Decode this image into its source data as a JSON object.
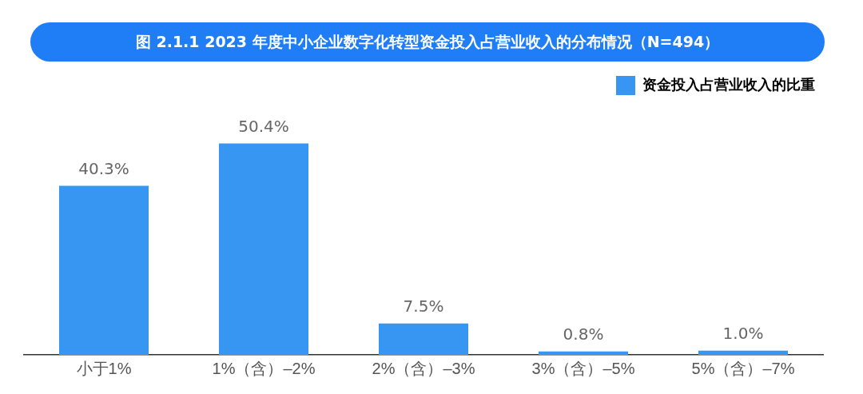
{
  "chart_data": {
    "type": "bar",
    "title": "图 2.1.1 2023 年度中小企业数字化转型资金投入占营业收入的分布情况（N=494）",
    "categories": [
      "小于1%",
      "1%（含）–2%",
      "2%（含）–3%",
      "3%（含）–5%",
      "5%（含）–7%"
    ],
    "series": [
      {
        "name": "资金投入占营业收入的比重",
        "color": "#3796f2",
        "values": [
          40.3,
          50.4,
          7.5,
          0.8,
          1.0
        ],
        "value_labels": [
          "40.3%",
          "50.4%",
          "7.5%",
          "0.8%",
          "1.0%"
        ]
      }
    ],
    "grid": false,
    "legend": "top right"
  }
}
